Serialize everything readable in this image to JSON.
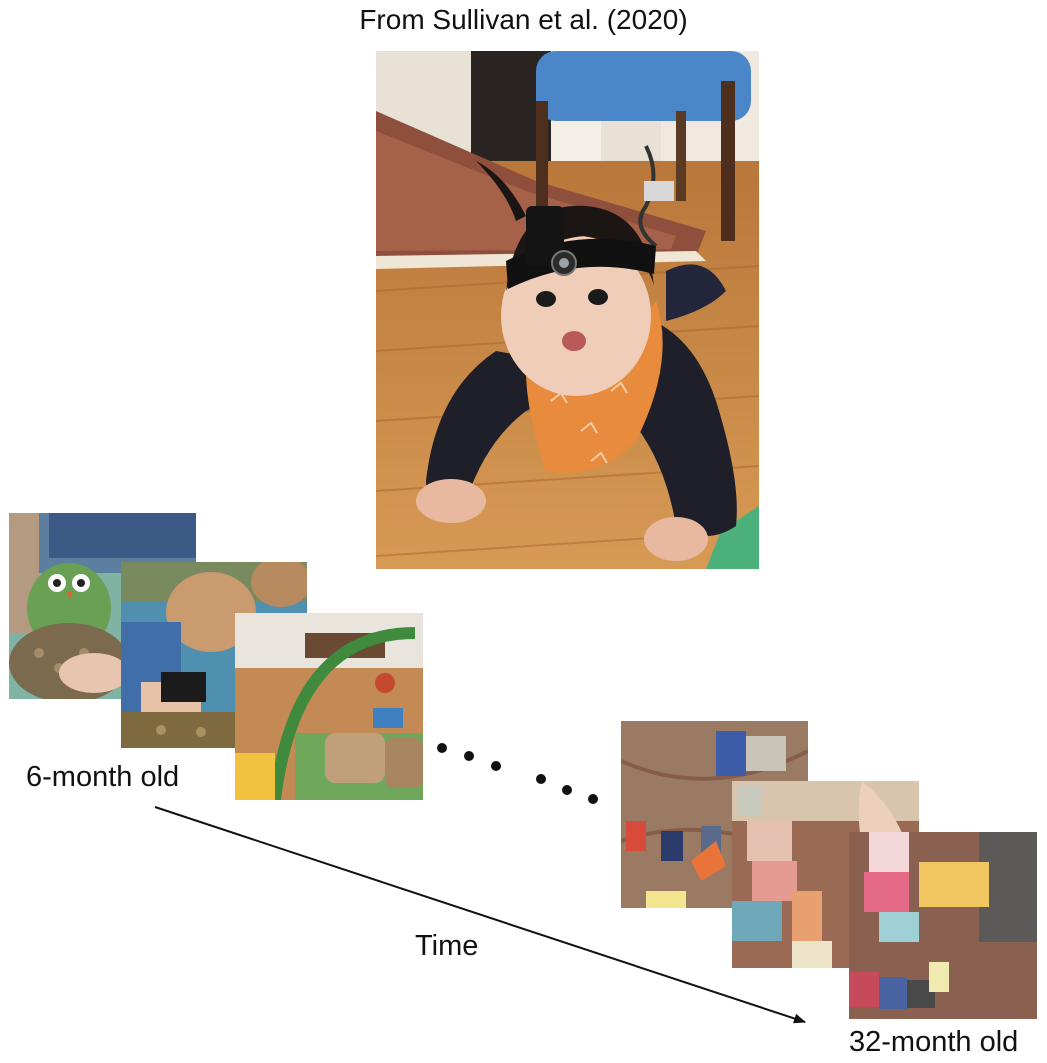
{
  "figure": {
    "caption": "From Sullivan et al. (2020)",
    "start_label": "6-month old",
    "time_label": "Time",
    "end_label": "32-month old"
  },
  "colors": {
    "text": "#111111",
    "arrow": "#111111",
    "floor": "#c98a45",
    "rug": "#9a5a45",
    "bandana": "#e88b3c",
    "sweater": "#1e1f28",
    "chair_wrap": "#4a86c8"
  },
  "images": {
    "main_photo": "infant wearing head-mounted camera crawling on wooden floor",
    "early_frames": [
      "frame-toy-owl",
      "frame-legs-blanket",
      "frame-play-gym"
    ],
    "late_frames": [
      "frame-toy-cars-rug",
      "frame-blocks-rug",
      "frame-blocks-hand"
    ]
  }
}
